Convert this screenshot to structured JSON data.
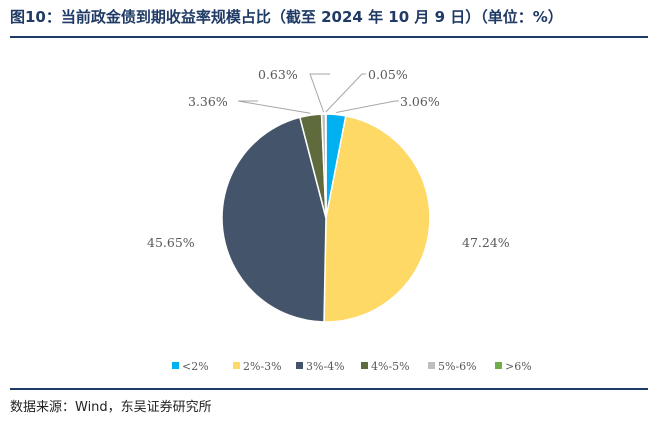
{
  "header": {
    "title": "图10：当前政金债到期收益率规模占比（截至 2024 年 10 月 9 日）（单位：%）"
  },
  "footer": {
    "source": "数据来源：Wind，东吴证券研究所"
  },
  "chart_data": {
    "type": "pie",
    "title": "图10：当前政金债到期收益率规模占比（截至 2024 年 10 月 9 日）（单位：%）",
    "unit": "%",
    "legend_position": "bottom",
    "slices": [
      {
        "name": "<2%",
        "value": 3.06,
        "label": "3.06%",
        "color": "#00b0f0"
      },
      {
        "name": "2%-3%",
        "value": 47.24,
        "label": "47.24%",
        "color": "#ffd966"
      },
      {
        "name": "3%-4%",
        "value": 45.65,
        "label": "45.65%",
        "color": "#44546a"
      },
      {
        "name": "4%-5%",
        "value": 3.36,
        "label": "3.36%",
        "color": "#5f6b3c"
      },
      {
        "name": "5%-6%",
        "value": 0.63,
        "label": "0.63%",
        "color": "#bfbfbf"
      },
      {
        "name": ">6%",
        "value": 0.05,
        "label": "0.05%",
        "color": "#70ad47"
      }
    ]
  }
}
